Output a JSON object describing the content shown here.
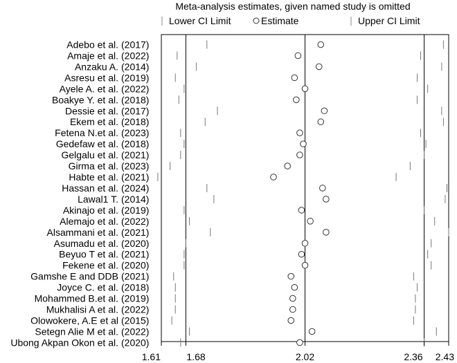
{
  "chart_data": {
    "type": "scatter",
    "title": "Meta-analysis estimates, given named study is omitted",
    "legend": {
      "position": "top",
      "items": [
        {
          "label": "Lower CI Limit",
          "marker": "tick"
        },
        {
          "label": "Estimate",
          "marker": "circle"
        },
        {
          "label": "Upper CI Limit",
          "marker": "tick"
        }
      ]
    },
    "xlim": [
      1.61,
      2.43
    ],
    "x_ticks": [
      "1.61",
      "1.68",
      "2.02",
      "2.36",
      "2.43"
    ],
    "reference_lines": [
      1.68,
      2.02,
      2.36
    ],
    "studies": [
      {
        "name": "Adebo et al.",
        "year": "(2017)",
        "lower": 1.74,
        "estimate": 2.065,
        "upper": 2.415
      },
      {
        "name": "Amaje et al.",
        "year": "(2022)",
        "lower": 1.655,
        "estimate": 2.0,
        "upper": 2.35
      },
      {
        "name": "Anzaku A.",
        "year": "(2014)",
        "lower": 1.71,
        "estimate": 2.06,
        "upper": 2.41
      },
      {
        "name": "Asresu et al.",
        "year": "(2019)",
        "lower": 1.65,
        "estimate": 1.99,
        "upper": 2.34
      },
      {
        "name": "Ayele A. et al.",
        "year": "(2022)",
        "lower": 1.675,
        "estimate": 2.02,
        "upper": 2.37
      },
      {
        "name": "Boakye Y. et al.",
        "year": "(2018)",
        "lower": 1.66,
        "estimate": 1.995,
        "upper": 2.34
      },
      {
        "name": "Dessie et al.",
        "year": "(2017)",
        "lower": 1.77,
        "estimate": 2.075,
        "upper": 2.41
      },
      {
        "name": "Ekem et al.",
        "year": "(2018)",
        "lower": 1.735,
        "estimate": 2.065,
        "upper": 2.415
      },
      {
        "name": "Fetena N.et al.",
        "year": "(2023)",
        "lower": 1.665,
        "estimate": 2.005,
        "upper": 2.35
      },
      {
        "name": "Gedefaw et al.",
        "year": "(2018)",
        "lower": 1.675,
        "estimate": 2.015,
        "upper": 2.365
      },
      {
        "name": "Gelgalu et al.",
        "year": "(2021)",
        "lower": 1.665,
        "estimate": 2.005,
        "upper": 2.36
      },
      {
        "name": "Girma et al.",
        "year": "(2023)",
        "lower": 1.635,
        "estimate": 1.97,
        "upper": 2.32
      },
      {
        "name": "Habte et al.",
        "year": "(2021)",
        "lower": 1.6,
        "estimate": 1.93,
        "upper": 2.28
      },
      {
        "name": "Hassan et al.",
        "year": "(2024)",
        "lower": 1.74,
        "estimate": 2.07,
        "upper": 2.425
      },
      {
        "name": "Lawal1 T.",
        "year": "(2014)",
        "lower": 1.76,
        "estimate": 2.08,
        "upper": 2.42
      },
      {
        "name": "Akinajo et al.",
        "year": "(2019)",
        "lower": 1.675,
        "estimate": 2.01,
        "upper": 2.36
      },
      {
        "name": "Alemajo et al.",
        "year": "(2022)",
        "lower": 1.69,
        "estimate": 2.035,
        "upper": 2.39
      },
      {
        "name": "Alsammani et al.",
        "year": "(2021)",
        "lower": 1.75,
        "estimate": 2.08,
        "upper": 2.43
      },
      {
        "name": "Asumadu et al.",
        "year": "(2020)",
        "lower": 1.68,
        "estimate": 2.02,
        "upper": 2.38
      },
      {
        "name": "Beyuo T et al.",
        "year": "(2021)",
        "lower": 1.675,
        "estimate": 2.01,
        "upper": 2.37
      },
      {
        "name": "Fekene et al.",
        "year": "(2020)",
        "lower": 1.675,
        "estimate": 2.02,
        "upper": 2.38
      },
      {
        "name": "Gamshe E and DDB",
        "year": "(2021)",
        "lower": 1.645,
        "estimate": 1.98,
        "upper": 2.33
      },
      {
        "name": "Joyce C. et al.",
        "year": "(2018)",
        "lower": 1.65,
        "estimate": 1.99,
        "upper": 2.34
      },
      {
        "name": "Mohammed B.et al.",
        "year": "(2019)",
        "lower": 1.65,
        "estimate": 1.985,
        "upper": 2.335
      },
      {
        "name": "Mukhalisi A et al.",
        "year": "(2022)",
        "lower": 1.65,
        "estimate": 1.985,
        "upper": 2.335
      },
      {
        "name": "Olowokere, A.E et al",
        "year": "(2015)",
        "lower": 1.64,
        "estimate": 1.98,
        "upper": 2.33
      },
      {
        "name": "Setegn Alie M et al.",
        "year": "(2022)",
        "lower": 1.69,
        "estimate": 2.04,
        "upper": 2.395
      },
      {
        "name": "Ubong Akpan Okon et al.",
        "year": "(2020)",
        "lower": 1.665,
        "estimate": 2.005,
        "upper": 2.36
      }
    ]
  }
}
